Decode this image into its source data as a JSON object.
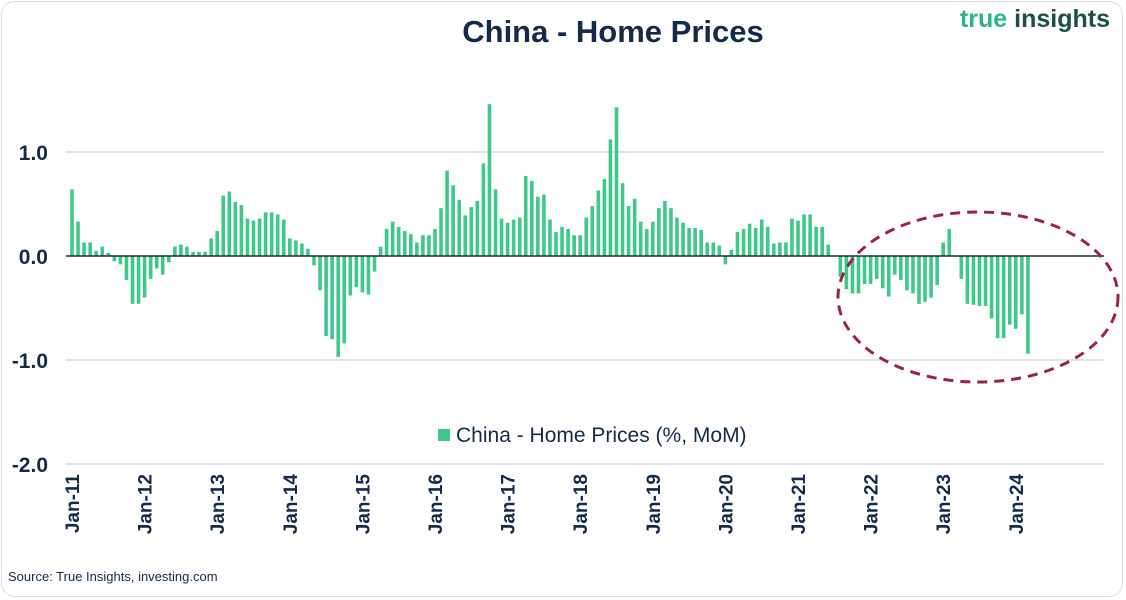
{
  "logo": {
    "part1": "true",
    "part2": "insights"
  },
  "source": "Source: True Insights, investing.com",
  "colors": {
    "bar": "#3ec98a",
    "title": "#142a4a",
    "highlight": "#9b2250",
    "logo_green": "#2bb58a",
    "logo_dark": "#1d4f4a"
  },
  "chart_data": {
    "type": "bar",
    "title": "China - Home Prices",
    "xlabel": "",
    "ylabel": "",
    "ylim": [
      -2.0,
      1.6
    ],
    "yticks": [
      {
        "value": 1.0,
        "label": "1.0"
      },
      {
        "value": 0.0,
        "label": "0.0"
      },
      {
        "value": -1.0,
        "label": "-1.0"
      },
      {
        "value": -2.0,
        "label": "-2.0"
      }
    ],
    "x_tick_labels": [
      "Jan-11",
      "Jan-12",
      "Jan-13",
      "Jan-14",
      "Jan-15",
      "Jan-16",
      "Jan-17",
      "Jan-18",
      "Jan-19",
      "Jan-20",
      "Jan-21",
      "Jan-22",
      "Jan-23",
      "Jan-24"
    ],
    "x_start": "2011-01",
    "frequency": "monthly",
    "legend": {
      "label": "China - Home Prices (%, MoM)",
      "position": "bottom-center"
    },
    "annotation": {
      "shape": "dashed-ellipse",
      "covers": "Jan-22 to Jan-24"
    },
    "series": [
      {
        "name": "China - Home Prices (%, MoM)",
        "values": [
          0.64,
          0.33,
          0.13,
          0.13,
          0.05,
          0.09,
          0.03,
          -0.05,
          -0.08,
          -0.23,
          -0.46,
          -0.46,
          -0.4,
          -0.22,
          -0.12,
          -0.18,
          -0.06,
          0.09,
          0.11,
          0.09,
          0.04,
          0.04,
          0.04,
          0.17,
          0.24,
          0.58,
          0.62,
          0.52,
          0.49,
          0.36,
          0.34,
          0.36,
          0.42,
          0.42,
          0.4,
          0.35,
          0.17,
          0.15,
          0.12,
          0.07,
          -0.09,
          -0.33,
          -0.77,
          -0.8,
          -0.97,
          -0.84,
          -0.38,
          -0.3,
          -0.35,
          -0.37,
          -0.15,
          0.09,
          0.26,
          0.33,
          0.28,
          0.24,
          0.21,
          0.13,
          0.2,
          0.2,
          0.26,
          0.46,
          0.82,
          0.68,
          0.54,
          0.39,
          0.47,
          0.53,
          0.89,
          1.46,
          0.64,
          0.36,
          0.32,
          0.35,
          0.37,
          0.77,
          0.72,
          0.57,
          0.59,
          0.35,
          0.23,
          0.28,
          0.26,
          0.2,
          0.2,
          0.37,
          0.48,
          0.63,
          0.74,
          1.12,
          1.43,
          0.7,
          0.48,
          0.55,
          0.33,
          0.26,
          0.33,
          0.46,
          0.53,
          0.46,
          0.37,
          0.32,
          0.27,
          0.27,
          0.25,
          0.13,
          0.13,
          0.1,
          -0.08,
          0.06,
          0.23,
          0.26,
          0.31,
          0.27,
          0.35,
          0.28,
          0.12,
          0.13,
          0.13,
          0.36,
          0.34,
          0.4,
          0.4,
          0.28,
          0.28,
          0.11,
          0.0,
          -0.2,
          -0.32,
          -0.36,
          -0.36,
          -0.27,
          -0.27,
          -0.22,
          -0.31,
          -0.39,
          -0.18,
          -0.23,
          -0.33,
          -0.36,
          -0.46,
          -0.44,
          -0.4,
          -0.28,
          0.13,
          0.26,
          0.0,
          -0.22,
          -0.46,
          -0.47,
          -0.48,
          -0.48,
          -0.6,
          -0.79,
          -0.79,
          -0.66,
          -0.7,
          -0.56,
          -0.94
        ]
      }
    ]
  }
}
